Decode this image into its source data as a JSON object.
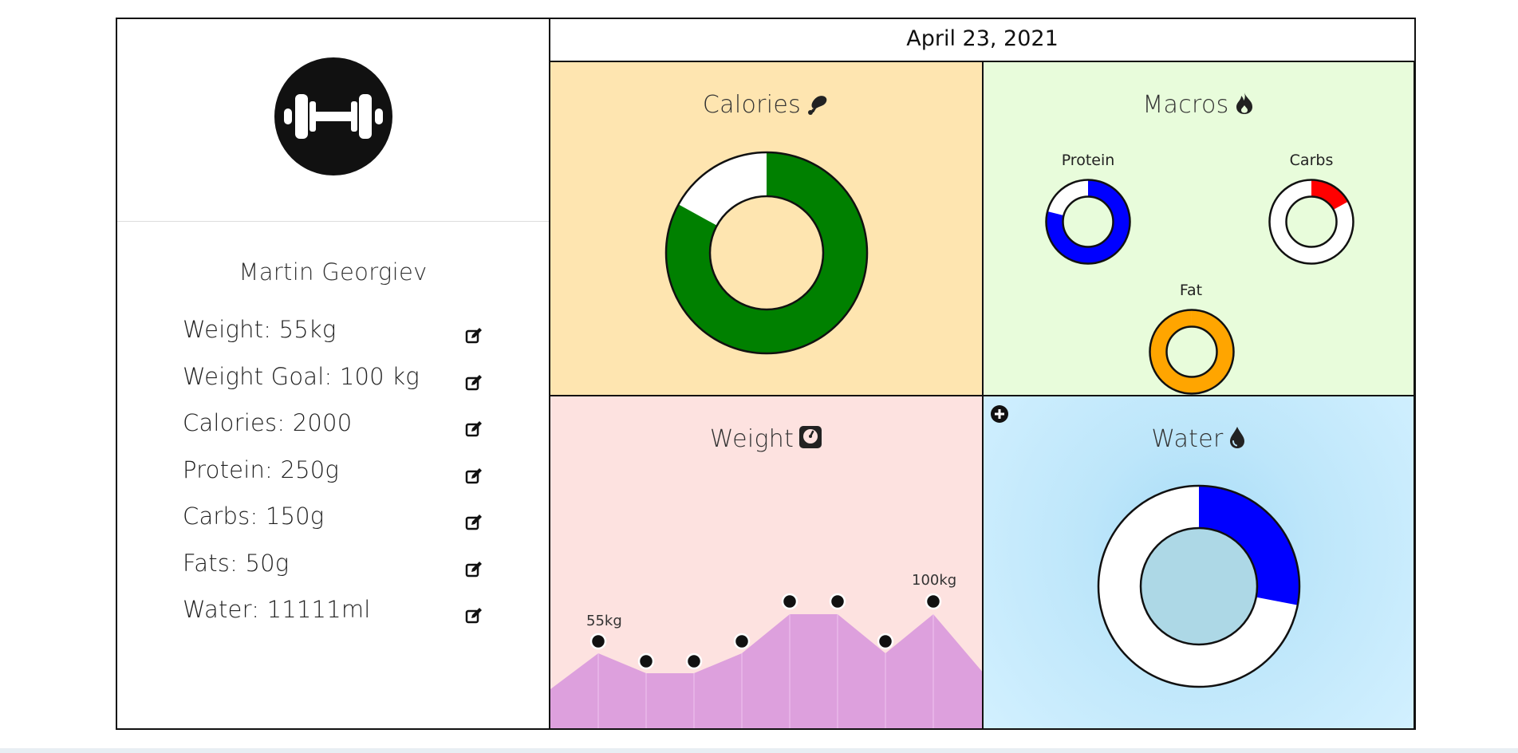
{
  "date": "April 23, 2021",
  "profile": {
    "name": "Martin Georgiev",
    "stats": [
      {
        "label": "Weight: 55kg"
      },
      {
        "label": "Weight Goal: 100 kg"
      },
      {
        "label": "Calories: 2000"
      },
      {
        "label": "Protein: 250g"
      },
      {
        "label": "Carbs: 150g"
      },
      {
        "label": "Fats: 50g"
      },
      {
        "label": "Water: 11111ml"
      }
    ]
  },
  "panels": {
    "calories": {
      "title": "Calories",
      "icon": "drumstick-icon",
      "progress": 0.83,
      "color": "#008000"
    },
    "macros": {
      "title": "Macros",
      "icon": "fire-icon",
      "items": [
        {
          "label": "Protein",
          "progress": 0.79,
          "color": "#0000ff"
        },
        {
          "label": "Carbs",
          "progress": 0.17,
          "color": "#ff0000"
        },
        {
          "label": "Fat",
          "progress": 1.0,
          "color": "#ffa500"
        }
      ]
    },
    "weight": {
      "title": "Weight",
      "icon": "scale-icon",
      "first_label": "55kg",
      "last_label": "100kg",
      "fill_color": "#dda0dd"
    },
    "water": {
      "title": "Water",
      "icon": "droplet-icon",
      "progress": 0.28,
      "color": "#0000ff",
      "add_icon": "plus-circle-icon"
    }
  }
}
